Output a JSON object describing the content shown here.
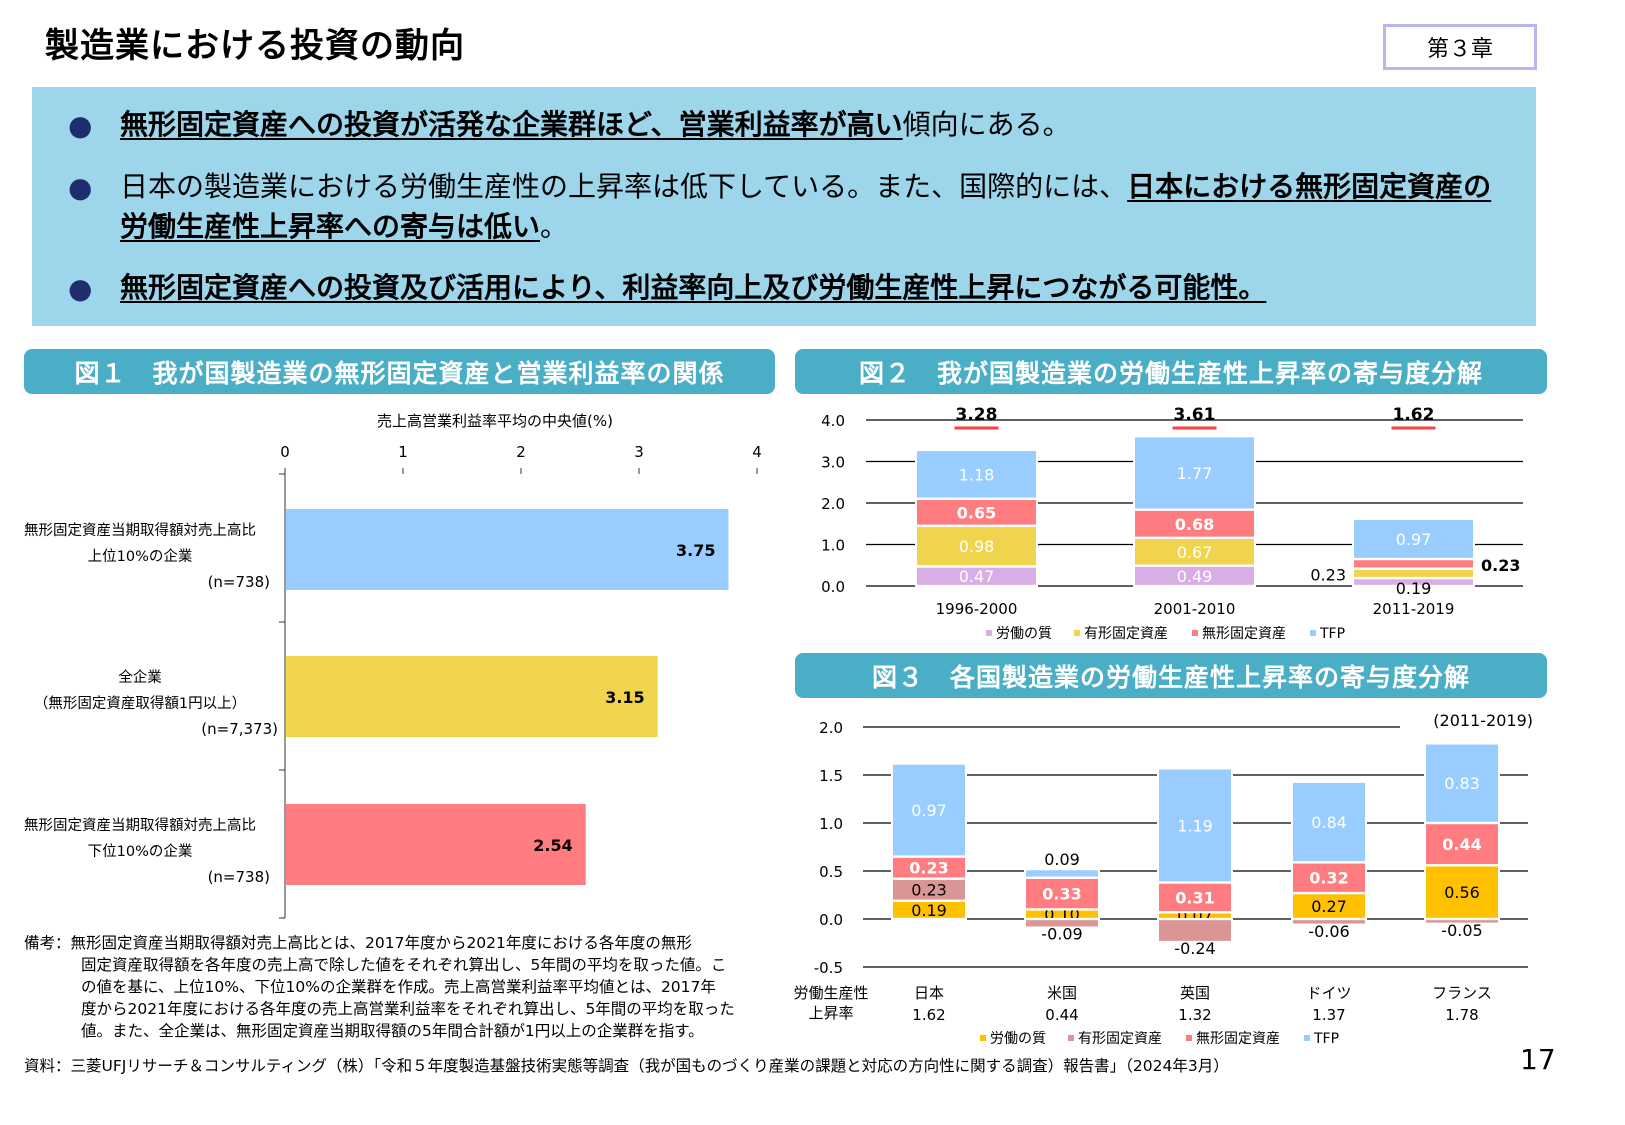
{
  "header": {
    "title": "製造業における投資の動向",
    "chapter": "第３章"
  },
  "summary": {
    "bullets": [
      [
        {
          "text": "無形固定資産への投資が活発な企業群ほど、営業利益率が高い",
          "emph": true
        },
        {
          "text": "傾向にある。",
          "emph": false
        }
      ],
      [
        {
          "text": "日本の製造業における労働生産性の上昇率は低下している。また、国際的には、",
          "emph": false
        },
        {
          "text": "日本における無形固定資産の労働生産性上昇率への寄与は低い",
          "emph": true
        },
        {
          "text": "。",
          "emph": false
        }
      ],
      [
        {
          "text": "無形固定資産への投資及び活用により、利益率向上及び労働生産性上昇につながる可能性。",
          "emph": true
        }
      ]
    ]
  },
  "figures": {
    "fig1_title": "図１　我が国製造業の無形固定資産と営業利益率の関係",
    "fig2_title": "図２　我が国製造業の労働生産性上昇率の寄与度分解",
    "fig3_title": "図３　各国製造業の労働生産性上昇率の寄与度分解"
  },
  "colors": {
    "header_bg": "#4aaec6",
    "summary_bg": "#9dd5eb",
    "blue": "#99ccff",
    "yellow": "#f0d44e",
    "red": "#ff7c80",
    "purple": "#d9aee6",
    "orange_yellow": "#ffc000",
    "dusty_pink": "#da9694"
  },
  "chart_data": [
    {
      "type": "bar",
      "orientation": "horizontal",
      "xlabel": "売上高営業利益率平均の中央値(%)",
      "xlim": [
        0,
        4
      ],
      "xticks": [
        "0",
        "1",
        "2",
        "3",
        "4"
      ],
      "categories": [
        [
          "無形固定資産当期取得額対売上高比",
          "上位10%の企業",
          "(n=738)"
        ],
        [
          "全企業",
          "（無形固定資産取得額1円以上）",
          "(n=7,373)"
        ],
        [
          "無形固定資産当期取得額対売上高比",
          "下位10%の企業",
          "(n=738)"
        ]
      ],
      "values": [
        3.75,
        3.15,
        2.54
      ],
      "labels": [
        "3.75",
        "3.15",
        "2.54"
      ],
      "bar_colors": [
        "#99ccff",
        "#f0d44e",
        "#ff7c80"
      ]
    },
    {
      "type": "bar",
      "stacked": true,
      "categories": [
        "1996-2000",
        "2001-2010",
        "2011-2019"
      ],
      "ylim": [
        0,
        4
      ],
      "yticks": [
        "0.0",
        "1.0",
        "2.0",
        "3.0",
        "4.0"
      ],
      "totals": [
        "3.28",
        "3.61",
        "1.62"
      ],
      "series": [
        {
          "name": "労働の質",
          "color": "#d9aee6",
          "values": [
            0.47,
            0.49,
            0.19
          ],
          "labels": [
            "0.47",
            "0.49",
            "0.19"
          ]
        },
        {
          "name": "有形固定資産",
          "color": "#f0d44e",
          "values": [
            0.98,
            0.67,
            0.23
          ],
          "labels": [
            "0.98",
            "0.67",
            "0.23"
          ]
        },
        {
          "name": "無形固定資産",
          "color": "#ff7c80",
          "values": [
            0.65,
            0.68,
            0.23
          ],
          "labels": [
            "0.65",
            "0.68",
            "0.23"
          ]
        },
        {
          "name": "TFP",
          "color": "#99ccff",
          "values": [
            1.18,
            1.77,
            0.97
          ],
          "labels": [
            "1.18",
            "1.77",
            "0.97"
          ]
        }
      ],
      "legend": "bottom"
    },
    {
      "type": "bar",
      "stacked": true,
      "period": "(2011-2019)",
      "categories": [
        "日本",
        "米国",
        "英国",
        "ドイツ",
        "フランス"
      ],
      "ylim": [
        -0.5,
        2.0
      ],
      "yticks": [
        "-0.5",
        "0.0",
        "0.5",
        "1.0",
        "1.5",
        "2.0"
      ],
      "totals_label": [
        "労働生産性",
        "上昇率"
      ],
      "totals": [
        "1.62",
        "0.44",
        "1.32",
        "1.37",
        "1.78"
      ],
      "series": [
        {
          "name": "労働の質",
          "color": "#ffc000",
          "values": [
            0.19,
            0.1,
            0.07,
            0.27,
            0.56
          ],
          "labels": [
            "0.19",
            "0.10",
            "0.07",
            "0.27",
            "0.56"
          ]
        },
        {
          "name": "有形固定資産",
          "color": "#da9694",
          "values": [
            0.23,
            -0.09,
            -0.24,
            -0.06,
            -0.05
          ],
          "labels": [
            "0.23",
            "-0.09",
            "-0.24",
            "-0.06",
            "-0.05"
          ]
        },
        {
          "name": "無形固定資産",
          "color": "#ff7c80",
          "values": [
            0.23,
            0.33,
            0.31,
            0.32,
            0.44
          ],
          "labels": [
            "0.23",
            "0.33",
            "0.31",
            "0.32",
            "0.44"
          ]
        },
        {
          "name": "TFP",
          "color": "#99ccff",
          "values": [
            0.97,
            0.09,
            1.19,
            0.84,
            0.83
          ],
          "labels": [
            "0.97",
            "0.09",
            "1.19",
            "0.84",
            "0.83"
          ]
        }
      ],
      "legend": "bottom"
    }
  ],
  "notes": {
    "remarks_lines": [
      "備考：無形固定資産当期取得額対売上高比とは、2017年度から2021年度における各年度の無形",
      "固定資産取得額を各年度の売上高で除した値をそれぞれ算出し、5年間の平均を取った値。こ",
      "の値を基に、上位10%、下位10%の企業群を作成。売上高営業利益率平均値とは、2017年",
      "度から2021年度における各年度の売上高営業利益率をそれぞれ算出し、5年間の平均を取った",
      "値。また、全企業は、無形固定資産当期取得額の5年間合計額が1円以上の企業群を指す。"
    ],
    "source": "資料：三菱UFJリサーチ＆コンサルティング（株）「令和５年度製造基盤技術実態等調査（我が国ものづくり産業の課題と対応の方向性に関する調査）報告書」（2024年3月）",
    "page_number": "17"
  }
}
